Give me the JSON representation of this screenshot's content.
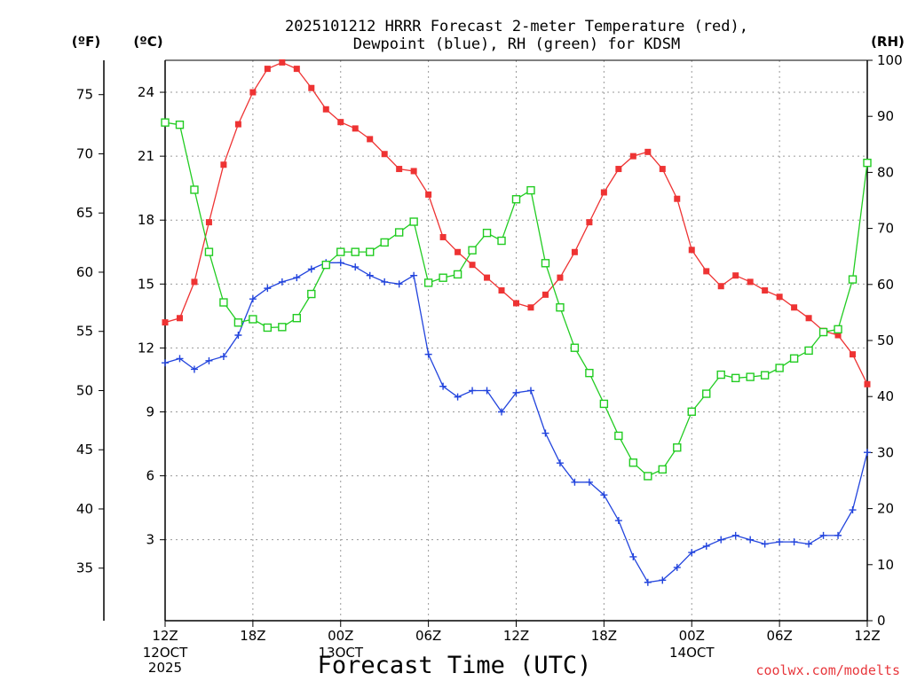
{
  "colors": {
    "temperature": "#ee3333",
    "dewpoint": "#2244dd",
    "rh": "#22cc22",
    "credit": "#e8383d"
  },
  "chart_data": {
    "type": "line",
    "title_line1": "2025101212 HRRR Forecast 2-meter Temperature (red),",
    "title_line2": "Dewpoint (blue), RH (green) for KDSM",
    "xlabel": "Forecast Time (UTC)",
    "credit": "coolwx.com/modelts",
    "unit_f": "(ºF)",
    "unit_c": "(ºC)",
    "unit_rh": "(RH)",
    "x_range_hours": [
      0,
      48
    ],
    "x_ticks": [
      {
        "hour": 0,
        "label": "12Z",
        "sub1": "12OCT",
        "sub2": "2025"
      },
      {
        "hour": 6,
        "label": "18Z"
      },
      {
        "hour": 12,
        "label": "00Z",
        "sub1": "13OCT"
      },
      {
        "hour": 18,
        "label": "06Z"
      },
      {
        "hour": 24,
        "label": "12Z"
      },
      {
        "hour": 30,
        "label": "18Z"
      },
      {
        "hour": 36,
        "label": "00Z",
        "sub1": "14OCT"
      },
      {
        "hour": 42,
        "label": "06Z"
      },
      {
        "hour": 48,
        "label": "12Z"
      }
    ],
    "c_range": [
      -0.8,
      25.5
    ],
    "c_ticks": [
      3,
      6,
      9,
      12,
      15,
      18,
      21,
      24
    ],
    "f_ticks": [
      35,
      40,
      45,
      50,
      55,
      60,
      65,
      70,
      75
    ],
    "rh_range": [
      0,
      100
    ],
    "rh_ticks": [
      0,
      10,
      20,
      30,
      40,
      50,
      60,
      70,
      80,
      90,
      100
    ],
    "series": [
      {
        "name": "Temperature (°C)",
        "key": "temperature",
        "axis": "c",
        "marker": "filled-square",
        "values": [
          13.2,
          13.4,
          15.1,
          17.9,
          20.6,
          22.5,
          24.0,
          25.1,
          25.4,
          25.1,
          24.2,
          23.2,
          22.6,
          22.3,
          21.8,
          21.1,
          20.4,
          20.3,
          19.2,
          17.2,
          16.5,
          15.9,
          15.3,
          14.7,
          14.1,
          13.9,
          14.5,
          15.3,
          16.5,
          17.9,
          19.3,
          20.4,
          21.0,
          21.2,
          20.4,
          19.0,
          16.6,
          15.6,
          14.9,
          15.4,
          15.1,
          14.7,
          14.4,
          13.9,
          13.4,
          12.8,
          12.6,
          11.7,
          10.3
        ]
      },
      {
        "name": "Dewpoint (°C)",
        "key": "dewpoint",
        "axis": "c",
        "marker": "plus",
        "values": [
          11.3,
          11.5,
          11.0,
          11.4,
          11.6,
          12.6,
          14.3,
          14.8,
          15.1,
          15.3,
          15.7,
          16.0,
          16.0,
          15.8,
          15.4,
          15.1,
          15.0,
          15.4,
          11.7,
          10.2,
          9.7,
          10.0,
          10.0,
          9.0,
          9.9,
          10.0,
          8.0,
          6.6,
          5.7,
          5.7,
          5.1,
          3.9,
          2.2,
          1.0,
          1.1,
          1.7,
          2.4,
          2.7,
          3.0,
          3.2,
          3.0,
          2.8,
          2.9,
          2.9,
          2.8,
          3.2,
          3.2,
          4.4,
          7.1
        ]
      },
      {
        "name": "RH (%)",
        "key": "rh",
        "axis": "rh",
        "marker": "open-square",
        "values": [
          88.9,
          88.5,
          76.9,
          65.8,
          56.8,
          53.2,
          53.8,
          52.3,
          52.4,
          54.0,
          58.3,
          63.5,
          65.8,
          65.8,
          65.8,
          67.5,
          69.3,
          71.2,
          60.3,
          61.2,
          61.8,
          66.1,
          69.2,
          67.8,
          75.2,
          76.8,
          63.8,
          55.9,
          48.7,
          44.2,
          38.7,
          33.0,
          28.2,
          25.8,
          27.0,
          30.9,
          37.3,
          40.5,
          43.9,
          43.3,
          43.5,
          43.8,
          45.1,
          46.8,
          48.2,
          51.5,
          52.0,
          60.9,
          81.7
        ]
      }
    ]
  }
}
